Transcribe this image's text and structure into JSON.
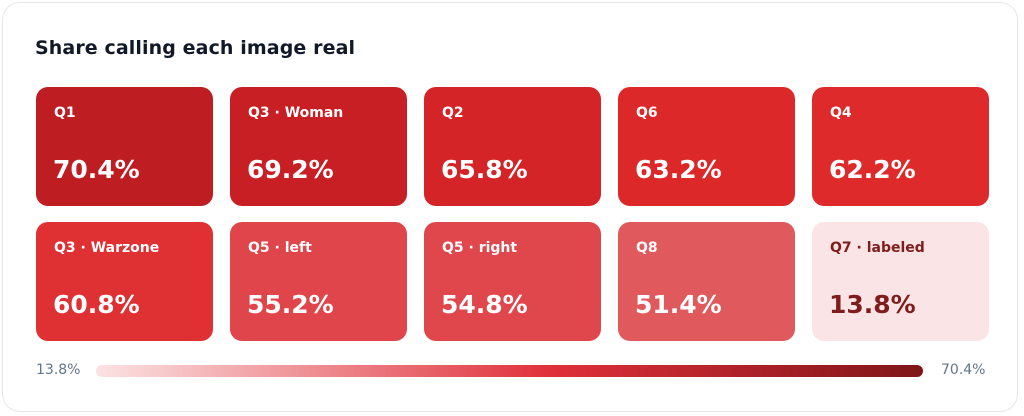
{
  "chart_data": {
    "type": "heatmap",
    "title": "Share calling each image real",
    "unit": "%",
    "tiles": [
      {
        "label": "Q1",
        "value": 70.4,
        "display": "70.4%"
      },
      {
        "label": "Q3 · Woman",
        "value": 69.2,
        "display": "69.2%"
      },
      {
        "label": "Q2",
        "value": 65.8,
        "display": "65.8%"
      },
      {
        "label": "Q6",
        "value": 63.2,
        "display": "63.2%"
      },
      {
        "label": "Q4",
        "value": 62.2,
        "display": "62.2%"
      },
      {
        "label": "Q3 · Warzone",
        "value": 60.8,
        "display": "60.8%"
      },
      {
        "label": "Q5 · left",
        "value": 55.2,
        "display": "55.2%"
      },
      {
        "label": "Q5 · right",
        "value": 54.8,
        "display": "54.8%"
      },
      {
        "label": "Q8",
        "value": 51.4,
        "display": "51.4%"
      },
      {
        "label": "Q7 · labeled",
        "value": 13.8,
        "display": "13.8%"
      }
    ],
    "legend": {
      "min_label": "13.8%",
      "max_label": "70.4%",
      "min": 13.8,
      "max": 70.4
    },
    "colors": {
      "Q1": "#be1d22",
      "Q3 · Woman": "#c71f24",
      "Q2": "#d42427",
      "Q6": "#dc2829",
      "Q4": "#df2a2b",
      "Q3 · Warzone": "#df3033",
      "Q5 · left": "#e0454b",
      "Q5 · right": "#e0474c",
      "Q8": "#e05a5d",
      "Q7 · labeled": "#fbe4e5"
    },
    "legend_gradient": [
      "#fbe3e3",
      "#e0303a",
      "#7f1518"
    ]
  }
}
